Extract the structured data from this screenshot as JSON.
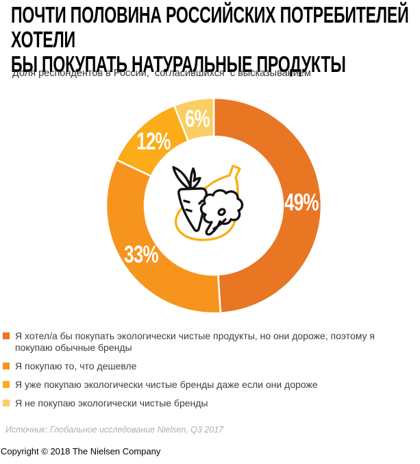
{
  "title": "ПОЧТИ ПОЛОВИНА РОССИЙСКИХ ПОТРЕБИТЕЛЕЙ ХОТЕЛИ\nБЫ ПОКУПАТЬ НАТУРАЛЬНЫЕ ПРОДУКТЫ",
  "subtitle": "Доля респондентов в России,  согласившихся  с высказыванием",
  "chart_data": {
    "type": "pie",
    "donut": true,
    "title": "Доля респондентов в России, согласившихся с высказыванием",
    "start_angle_deg": 0,
    "direction": "clockwise",
    "legend_position": "bottom-left",
    "slices": [
      {
        "name": "Я хотел/а бы покупать экологически чистые продукты, но они дороже, поэтому я покупаю обычные бренды",
        "value": 49,
        "label": "49%",
        "color": "#E97623"
      },
      {
        "name": "Я покупаю то, что дешевле",
        "value": 33,
        "label": "33%",
        "color": "#F7941E"
      },
      {
        "name": "Я уже покупаю экологически чистые бренды даже если они дороже",
        "value": 12,
        "label": "12%",
        "color": "#FBAC18"
      },
      {
        "name": "Я не покупаю экологически чистые бренды",
        "value": 6,
        "label": "6%",
        "color": "#FBCD62"
      }
    ],
    "center_icon": "vegetables (carrot, pear, broccoli)",
    "label_color": "#ffffff"
  },
  "icon_colors": {
    "pear_outline": "#FBAE17",
    "vegetable_outline": "#111111"
  },
  "source": "Источник: Глобальное исследование Nielsen, Q3 2017",
  "copyright": "Copyright © 2018 The Nielsen Company"
}
